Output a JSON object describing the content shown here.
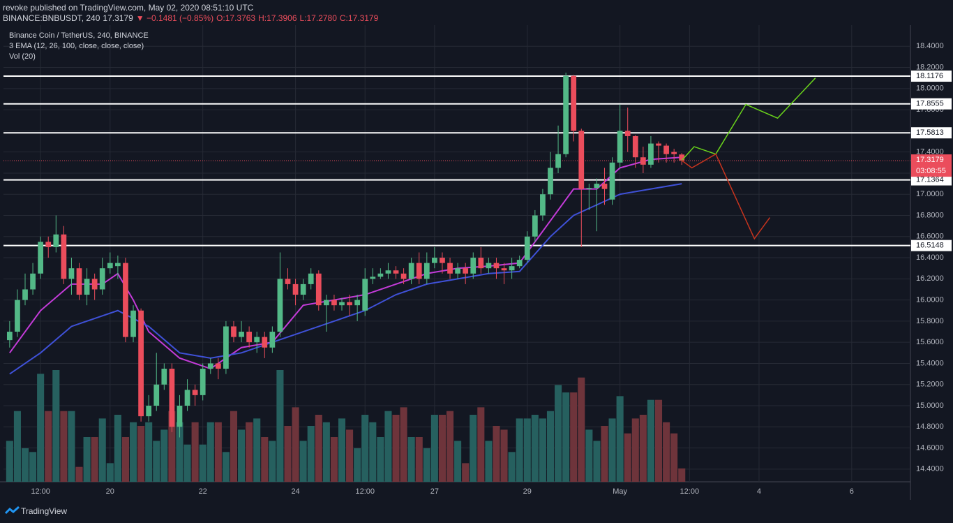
{
  "header": {
    "published": "revoke published on TradingView.com, May 02, 2020 08:51:10 UTC",
    "symbol": "BINANCE:BNBUSDT, 240",
    "last": "17.3179",
    "change": "▼ −0.1481 (−0.85%)",
    "o": "O:17.3763",
    "h": "H:17.3906",
    "l": "L:17.2780",
    "c": "C:17.3179"
  },
  "footer": {
    "brand": "TradingView"
  },
  "chart_data": {
    "type": "candlestick",
    "legend": [
      "Binance Coin / TetherUS, 240, BINANCE",
      "3 EMA (12, 26, 100, close, close, close)",
      "Vol (20)"
    ],
    "x": [
      0,
      1,
      2,
      3,
      4,
      5,
      6,
      7,
      8,
      9,
      10,
      11,
      12,
      13,
      14,
      15,
      16,
      17,
      18,
      19,
      20,
      21,
      22,
      23,
      24,
      25,
      26,
      27,
      28,
      29,
      30,
      31,
      32,
      33,
      34,
      35,
      36,
      37,
      38,
      39,
      40,
      41,
      42,
      43,
      44,
      45,
      46,
      47,
      48,
      49,
      50,
      51,
      52,
      53,
      54,
      55,
      56,
      57,
      58,
      59,
      60,
      61,
      62,
      63,
      64,
      65,
      66,
      67,
      68,
      69,
      70,
      71,
      72,
      73,
      74,
      75,
      76,
      77,
      78,
      79,
      80,
      81,
      82,
      83,
      84,
      85,
      86,
      87
    ],
    "open": [
      15.62,
      15.7,
      16.0,
      16.1,
      16.25,
      16.55,
      16.5,
      16.62,
      16.2,
      16.3,
      16.05,
      16.2,
      16.1,
      16.3,
      16.32,
      16.35,
      15.65,
      15.9,
      14.9,
      15.0,
      15.2,
      15.35,
      14.8,
      15.0,
      15.15,
      15.1,
      15.35,
      15.4,
      15.35,
      15.75,
      15.65,
      15.7,
      15.6,
      15.65,
      15.55,
      15.7,
      16.2,
      16.15,
      16.05,
      16.15,
      16.25,
      15.95,
      16.0,
      15.95,
      15.98,
      15.95,
      15.9,
      16.2,
      16.22,
      16.25,
      16.28,
      16.25,
      16.2,
      16.35,
      16.2,
      16.35,
      16.4,
      16.35,
      16.25,
      16.3,
      16.25,
      16.4,
      16.3,
      16.35,
      16.3,
      16.28,
      16.32,
      16.38,
      16.6,
      16.8,
      17.0,
      17.25,
      17.38,
      18.12,
      17.6,
      17.05,
      17.06,
      17.1,
      16.95,
      17.3,
      17.6,
      17.55,
      17.35,
      17.28,
      17.48,
      17.46,
      17.4,
      17.3763
    ],
    "high": [
      15.8,
      16.1,
      16.25,
      16.35,
      16.6,
      16.6,
      16.8,
      16.7,
      16.4,
      16.35,
      16.3,
      16.25,
      16.4,
      16.45,
      16.42,
      16.4,
      15.95,
      15.92,
      15.1,
      15.5,
      15.4,
      15.4,
      15.1,
      15.25,
      15.2,
      15.4,
      15.45,
      15.45,
      15.8,
      15.8,
      15.8,
      15.75,
      15.7,
      15.7,
      15.75,
      16.45,
      16.3,
      16.2,
      16.2,
      16.3,
      16.28,
      16.05,
      16.05,
      16.02,
      16.05,
      16.05,
      16.3,
      16.3,
      16.3,
      16.35,
      16.32,
      16.3,
      16.4,
      16.45,
      16.45,
      16.5,
      16.45,
      16.4,
      16.35,
      16.35,
      16.45,
      16.5,
      16.4,
      16.4,
      16.35,
      16.4,
      16.42,
      16.65,
      16.85,
      17.05,
      17.4,
      17.65,
      18.15,
      18.13,
      17.62,
      17.1,
      17.15,
      17.25,
      17.35,
      17.85,
      17.82,
      17.56,
      17.45,
      17.55,
      17.5,
      17.48,
      17.43,
      17.3906
    ],
    "low": [
      15.55,
      15.65,
      15.95,
      16.05,
      16.2,
      16.4,
      16.45,
      16.15,
      16.05,
      16.0,
      15.95,
      16.0,
      16.05,
      16.25,
      16.2,
      15.6,
      15.6,
      14.85,
      14.85,
      14.95,
      15.15,
      14.75,
      14.7,
      14.95,
      15.0,
      15.05,
      15.3,
      15.25,
      15.3,
      15.6,
      15.6,
      15.55,
      15.5,
      15.45,
      15.5,
      15.65,
      16.1,
      15.95,
      16.0,
      16.1,
      15.9,
      15.7,
      15.9,
      15.9,
      15.85,
      15.8,
      15.85,
      16.15,
      16.2,
      16.2,
      16.2,
      16.15,
      16.15,
      16.15,
      16.15,
      16.3,
      16.25,
      16.2,
      16.2,
      16.15,
      16.2,
      16.25,
      16.25,
      16.2,
      16.15,
      16.2,
      16.3,
      16.35,
      16.55,
      16.75,
      16.95,
      17.2,
      17.35,
      17.5,
      16.5,
      16.85,
      16.65,
      16.9,
      16.9,
      17.25,
      17.4,
      17.25,
      17.2,
      17.25,
      17.3,
      17.3,
      17.3,
      17.278
    ],
    "close": [
      15.7,
      16.0,
      16.1,
      16.25,
      16.55,
      16.5,
      16.62,
      16.2,
      16.3,
      16.05,
      16.2,
      16.1,
      16.3,
      16.35,
      16.35,
      15.65,
      15.9,
      14.9,
      15.0,
      15.2,
      15.35,
      14.8,
      15.0,
      15.15,
      15.1,
      15.35,
      15.4,
      15.35,
      15.75,
      15.65,
      15.7,
      15.6,
      15.65,
      15.55,
      15.7,
      16.2,
      16.15,
      16.05,
      16.15,
      16.25,
      15.95,
      16.0,
      15.95,
      15.98,
      15.95,
      16.0,
      16.2,
      16.22,
      16.25,
      16.28,
      16.25,
      16.2,
      16.35,
      16.2,
      16.35,
      16.4,
      16.35,
      16.25,
      16.3,
      16.25,
      16.4,
      16.3,
      16.35,
      16.3,
      16.28,
      16.32,
      16.38,
      16.6,
      16.8,
      17.0,
      17.25,
      17.38,
      18.12,
      17.6,
      17.05,
      17.06,
      17.1,
      17.05,
      17.3,
      17.6,
      17.55,
      17.35,
      17.28,
      17.48,
      17.46,
      17.38,
      17.38,
      17.3179
    ],
    "volume": [
      55,
      95,
      45,
      40,
      145,
      95,
      150,
      95,
      95,
      20,
      60,
      60,
      85,
      25,
      90,
      60,
      80,
      75,
      80,
      55,
      70,
      95,
      80,
      50,
      80,
      50,
      80,
      80,
      40,
      95,
      70,
      80,
      85,
      60,
      55,
      150,
      75,
      100,
      55,
      75,
      90,
      80,
      60,
      85,
      70,
      45,
      90,
      80,
      60,
      95,
      90,
      100,
      60,
      60,
      45,
      90,
      90,
      95,
      55,
      25,
      90,
      100,
      55,
      75,
      70,
      40,
      85,
      85,
      90,
      85,
      95,
      130,
      120,
      120,
      140,
      70,
      55,
      75,
      85,
      115,
      65,
      85,
      90,
      110,
      110,
      80,
      65,
      18
    ],
    "up_color": "#53b987",
    "down_color": "#eb4d5c",
    "vol_up_color": "#26605f",
    "vol_down_color": "#6e343b",
    "ema": [
      {
        "color": "#c43bd9",
        "x": [
          0,
          4,
          8,
          12,
          14,
          16,
          18,
          22,
          26,
          30,
          34,
          38,
          42,
          46,
          50,
          54,
          58,
          62,
          66,
          70,
          73,
          76,
          79,
          83,
          87
        ],
        "values": [
          15.5,
          15.9,
          16.15,
          16.15,
          16.25,
          16.0,
          15.7,
          15.45,
          15.35,
          15.55,
          15.6,
          15.95,
          16.0,
          16.05,
          16.15,
          16.25,
          16.3,
          16.32,
          16.35,
          16.75,
          17.05,
          17.05,
          17.25,
          17.33,
          17.35
        ]
      },
      {
        "color": "#3f51d8",
        "x": [
          0,
          4,
          8,
          12,
          14,
          18,
          22,
          26,
          30,
          34,
          38,
          42,
          46,
          50,
          54,
          58,
          62,
          66,
          70,
          73,
          76,
          79,
          83,
          87
        ],
        "values": [
          15.3,
          15.5,
          15.75,
          15.85,
          15.9,
          15.75,
          15.5,
          15.45,
          15.5,
          15.6,
          15.7,
          15.8,
          15.9,
          16.05,
          16.15,
          16.2,
          16.25,
          16.27,
          16.6,
          16.8,
          16.9,
          17.0,
          17.05,
          17.1
        ]
      }
    ],
    "projections": [
      {
        "color": "#6ad41b",
        "x": [
          87,
          88.6,
          91.4,
          95.3,
          99.4,
          104.3
        ],
        "values": [
          17.32,
          17.45,
          17.38,
          17.85,
          17.72,
          18.1
        ]
      },
      {
        "color": "#c8341e",
        "x": [
          87,
          88.3,
          91.4,
          96.4,
          98.4
        ],
        "values": [
          17.32,
          17.25,
          17.38,
          16.58,
          16.78
        ]
      }
    ],
    "levels": [
      18.1176,
      17.8555,
      17.5813,
      17.1364,
      16.5148
    ],
    "last_price": 17.3179,
    "countdown": "03:08:55",
    "xlim": [
      -0.8,
      116.6
    ],
    "ylim": [
      14.28,
      18.6
    ],
    "xticks": [
      {
        "value": 4,
        "label": "12:00"
      },
      {
        "value": 13,
        "label": "20"
      },
      {
        "value": 25,
        "label": "22"
      },
      {
        "value": 37,
        "label": "24"
      },
      {
        "value": 46,
        "label": "12:00"
      },
      {
        "value": 55,
        "label": "27"
      },
      {
        "value": 67,
        "label": "29"
      },
      {
        "value": 79,
        "label": "May"
      },
      {
        "value": 88,
        "label": "12:00"
      },
      {
        "value": 97,
        "label": "4"
      },
      {
        "value": 109,
        "label": "6"
      }
    ],
    "yticks": [
      {
        "value": 14.4,
        "label": "14.4000"
      },
      {
        "value": 14.6,
        "label": "14.6000"
      },
      {
        "value": 14.8,
        "label": "14.8000"
      },
      {
        "value": 15.0,
        "label": "15.0000"
      },
      {
        "value": 15.2,
        "label": "15.2000"
      },
      {
        "value": 15.4,
        "label": "15.4000"
      },
      {
        "value": 15.6,
        "label": "15.6000"
      },
      {
        "value": 15.8,
        "label": "15.8000"
      },
      {
        "value": 16.0,
        "label": "16.0000"
      },
      {
        "value": 16.2,
        "label": "16.2000"
      },
      {
        "value": 16.4,
        "label": "16.4000"
      },
      {
        "value": 16.6,
        "label": "16.6000"
      },
      {
        "value": 16.8,
        "label": "16.8000"
      },
      {
        "value": 17.0,
        "label": "17.0000"
      },
      {
        "value": 17.2,
        "label": "17.2000"
      },
      {
        "value": 17.4,
        "label": "17.4000"
      },
      {
        "value": 17.6,
        "label": "17.6000"
      },
      {
        "value": 17.8,
        "label": "17.8000"
      },
      {
        "value": 18.0,
        "label": "18.0000"
      },
      {
        "value": 18.2,
        "label": "18.2000"
      },
      {
        "value": 18.4,
        "label": "18.4000"
      }
    ],
    "grid": true
  }
}
